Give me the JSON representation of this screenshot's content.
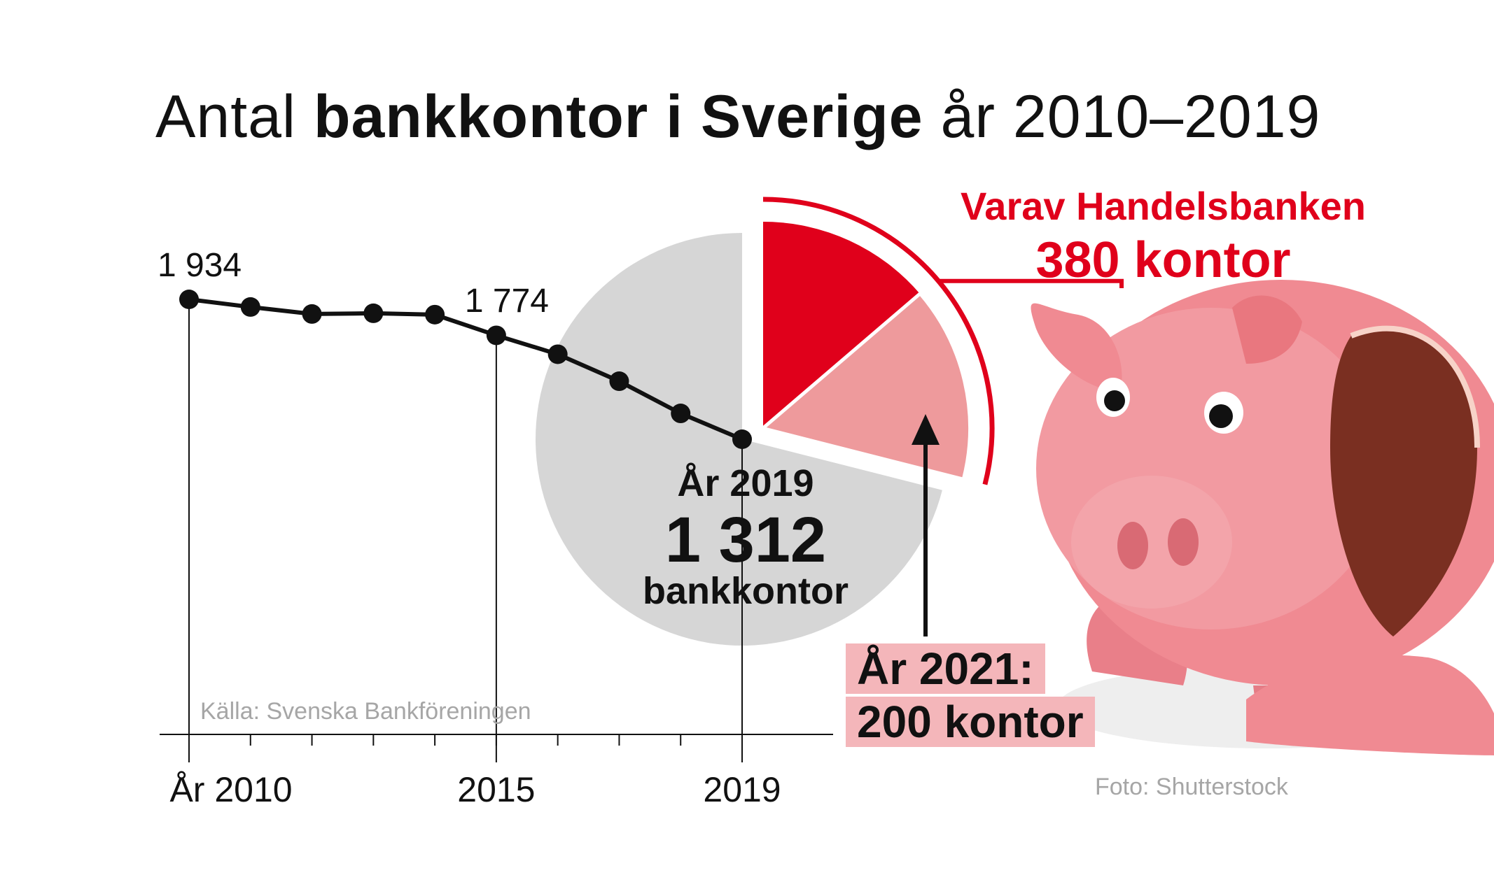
{
  "title": {
    "part1": "Antal",
    "bold": "bankkontor i Sverige",
    "part2": "år 2010–2019"
  },
  "chart_data": {
    "type": "line",
    "x": [
      2010,
      2011,
      2012,
      2013,
      2014,
      2015,
      2016,
      2017,
      2018,
      2019
    ],
    "values": [
      1934,
      1900,
      1869,
      1872,
      1866,
      1774,
      1690,
      1570,
      1427,
      1312
    ],
    "point_labels": [
      {
        "x": 2010,
        "text": "1 934"
      },
      {
        "x": 2015,
        "text": "1 774"
      }
    ],
    "x_tick_labels": [
      {
        "x": 2010,
        "text": "År 2010"
      },
      {
        "x": 2015,
        "text": "2015"
      },
      {
        "x": 2019,
        "text": "2019"
      }
    ],
    "xlim": [
      2010,
      2019
    ],
    "ylim": [
      1200,
      2000
    ],
    "grid": false,
    "pie": {
      "total": 1312,
      "handelsbanken": 380,
      "handelsbanken_2021": 200
    }
  },
  "annotations": {
    "handels_line1": "Varav Handelsbanken",
    "handels_line2": "380 kontor",
    "y2019_line1": "År 2019",
    "y2019_line2": "1 312",
    "y2019_line3": "bankkontor",
    "y2021_line1": "År 2021:",
    "y2021_line2": "200 kontor"
  },
  "source": "Källa: Svenska Bankföreningen",
  "photo_credit": "Foto: Shutterstock",
  "colors": {
    "red": "#e0001b",
    "light_red": "#ee9a9c",
    "gray_pie": "#d6d6d6",
    "line": "#111111",
    "box": "#f4b6ba",
    "pig": "#f08a92"
  },
  "icons": {
    "photo": "piggy-bank-icon"
  }
}
